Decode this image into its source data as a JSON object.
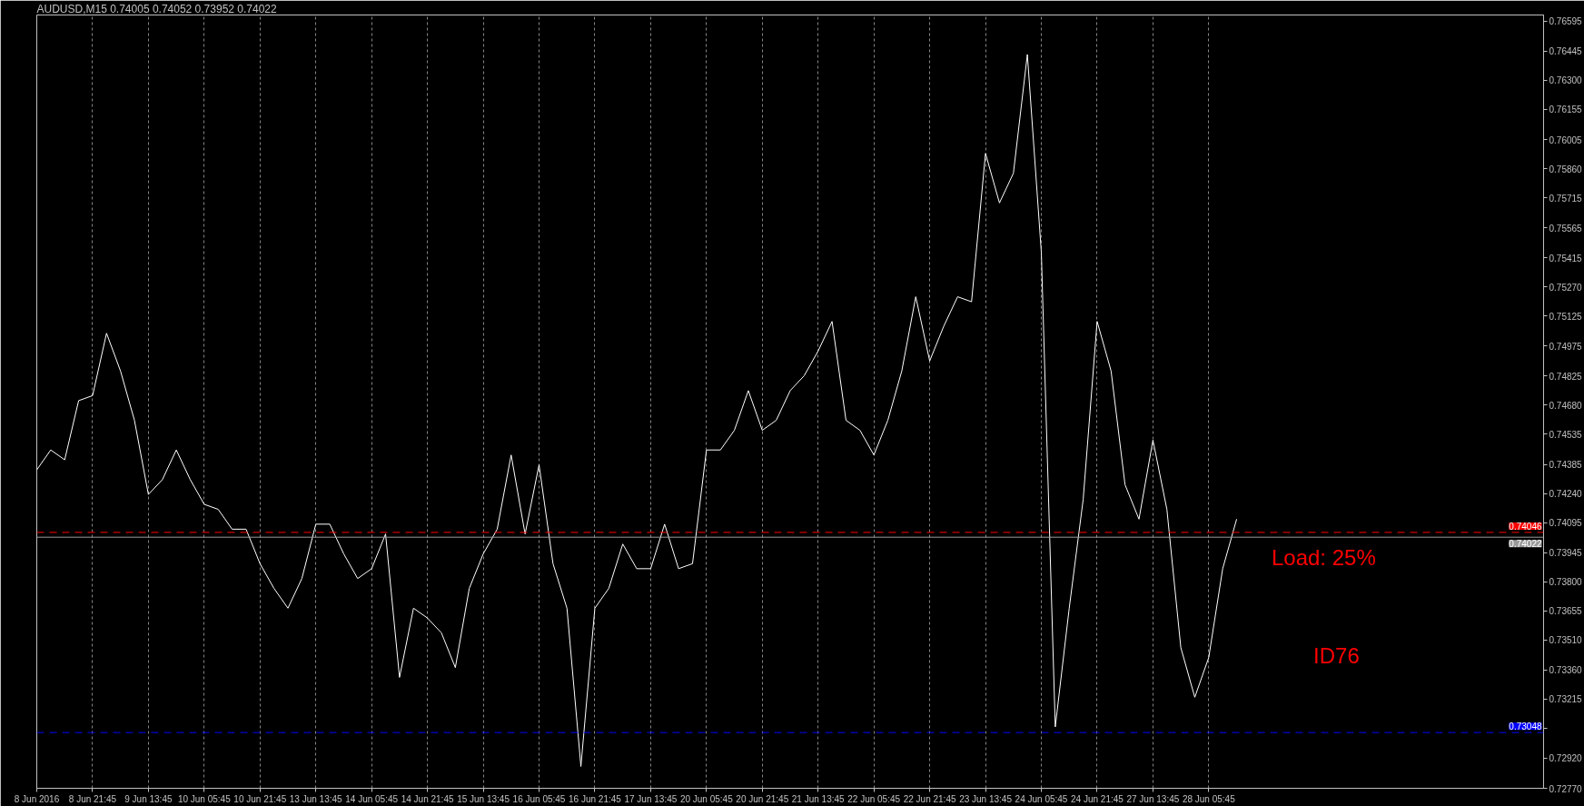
{
  "chart_data": {
    "type": "line",
    "title": "AUDUSD,M15  0.74005 0.74052 0.73952 0.74022",
    "categories": [
      "8 Jun 2016",
      null,
      null,
      null,
      "8 Jun 21:45",
      null,
      null,
      null,
      "9 Jun 13:45",
      null,
      null,
      null,
      "10 Jun 05:45",
      null,
      null,
      null,
      "10 Jun 21:45",
      null,
      null,
      null,
      "13 Jun 13:45",
      null,
      null,
      null,
      "14 Jun 05:45",
      null,
      null,
      null,
      "14 Jun 21:45",
      null,
      null,
      null,
      "15 Jun 13:45",
      null,
      null,
      null,
      "16 Jun 05:45",
      null,
      null,
      null,
      "16 Jun 21:45",
      null,
      null,
      null,
      "17 Jun 13:45",
      null,
      null,
      null,
      "20 Jun 05:45",
      null,
      null,
      null,
      "20 Jun 21:45",
      null,
      null,
      null,
      "21 Jun 13:45",
      null,
      null,
      null,
      "22 Jun 05:45",
      null,
      null,
      null,
      "22 Jun 21:45",
      null,
      null,
      null,
      "23 Jun 13:45",
      null,
      null,
      null,
      "24 Jun 05:45",
      null,
      null,
      null,
      "24 Jun 21:45",
      null,
      null,
      null,
      "27 Jun 13:45",
      null,
      null,
      null,
      "28 Jun 05:45",
      null,
      null,
      null,
      null,
      null,
      null,
      null,
      null,
      null,
      null,
      null,
      null,
      null,
      null,
      null,
      null,
      null,
      null,
      null,
      null,
      null,
      null,
      null,
      null
    ],
    "series": [
      {
        "color": "#ffffff",
        "values": [
          0.74358,
          0.74457,
          0.74408,
          0.74703,
          0.74728,
          0.75039,
          0.74851,
          0.74605,
          0.74235,
          0.74309,
          0.74457,
          0.74309,
          0.74186,
          0.74161,
          0.74062,
          0.74062,
          0.7389,
          0.73767,
          0.73668,
          0.73816,
          0.74087,
          0.74087,
          0.73939,
          0.73816,
          0.73865,
          0.74038,
          0.73323,
          0.73668,
          0.73619,
          0.73545,
          0.73372,
          0.73767,
          0.73939,
          0.74062,
          0.74432,
          0.74038,
          0.74383,
          0.7389,
          0.73668,
          0.72879,
          0.73668,
          0.73767,
          0.73988,
          0.73865,
          0.73865,
          0.74087,
          0.73865,
          0.7389,
          0.74457,
          0.74457,
          0.74555,
          0.74753,
          0.74555,
          0.74605,
          0.74753,
          0.74827,
          0.7495,
          0.75098,
          0.74605,
          0.74555,
          0.74432,
          0.74605,
          0.74851,
          0.75221,
          0.74901,
          0.75073,
          0.75221,
          0.75196,
          0.75936,
          0.75689,
          0.75837,
          0.76429,
          0.75443,
          0.73076,
          0.73668,
          0.7421,
          0.75098,
          0.74851,
          0.74284,
          0.74112,
          0.74506,
          0.74161,
          0.73471,
          0.73224,
          0.73422,
          0.73865,
          0.74112,
          null,
          null,
          null,
          null,
          null,
          null,
          null,
          null,
          null,
          null,
          null,
          null,
          null,
          null,
          null,
          null,
          null,
          null,
          null,
          null,
          null,
          null
        ]
      }
    ],
    "ylim": [
      0.7277,
      0.76626
    ],
    "yticks": [
      {
        "value": 0.76595,
        "label": "0.76595"
      },
      {
        "value": 0.76445,
        "label": "0.76445"
      },
      {
        "value": 0.763,
        "label": "0.76300"
      },
      {
        "value": 0.76155,
        "label": "0.76155"
      },
      {
        "value": 0.76005,
        "label": "0.76005"
      },
      {
        "value": 0.7586,
        "label": "0.75860"
      },
      {
        "value": 0.75715,
        "label": "0.75715"
      },
      {
        "value": 0.75565,
        "label": "0.75565"
      },
      {
        "value": 0.75415,
        "label": "0.75415"
      },
      {
        "value": 0.7527,
        "label": "0.75270"
      },
      {
        "value": 0.75125,
        "label": "0.75125"
      },
      {
        "value": 0.74975,
        "label": "0.74975"
      },
      {
        "value": 0.74825,
        "label": "0.74825"
      },
      {
        "value": 0.7468,
        "label": "0.74680"
      },
      {
        "value": 0.74535,
        "label": "0.74535"
      },
      {
        "value": 0.74385,
        "label": "0.74385"
      },
      {
        "value": 0.7424,
        "label": "0.74240"
      },
      {
        "value": 0.74095,
        "label": "0.74095"
      },
      {
        "value": 0.73945,
        "label": "0.73945"
      },
      {
        "value": 0.738,
        "label": "0.73800"
      },
      {
        "value": 0.73655,
        "label": "0.73655"
      },
      {
        "value": 0.7351,
        "label": "0.73510"
      },
      {
        "value": 0.7336,
        "label": "0.73360"
      },
      {
        "value": 0.73215,
        "label": "0.73215"
      },
      {
        "value": 0.7307,
        "label": null
      },
      {
        "value": 0.7292,
        "label": "0.72920"
      },
      {
        "value": 0.7277,
        "label": "0.72770"
      }
    ],
    "ref_lines": [
      {
        "axis": "y",
        "value": 0.74046,
        "label": "0.74046",
        "color": "#ff0000",
        "line_style": "dashed"
      },
      {
        "axis": "y",
        "value": 0.74022,
        "label": "0.74022",
        "color": "#9a9a9a",
        "line_style": "solid"
      },
      {
        "axis": "y",
        "value": 0.73048,
        "label": "0.73048",
        "color": "#0000ff",
        "line_style": "dashed"
      }
    ],
    "annotations": [
      "Load: 25%",
      "ID76"
    ],
    "grid": "x",
    "marker": "none",
    "line_style": "solid"
  }
}
